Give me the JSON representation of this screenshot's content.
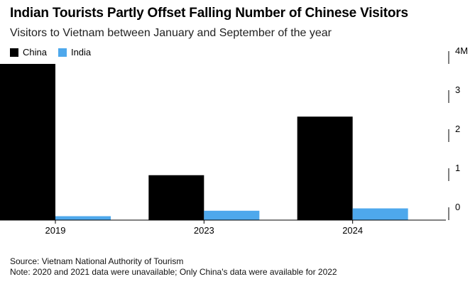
{
  "header": {
    "title": "Indian Tourists Partly Offset Falling Number of Chinese Visitors",
    "subtitle": "Visitors to Vietnam between January and September of the year"
  },
  "legend": {
    "items": [
      {
        "label": "China",
        "color": "#000000"
      },
      {
        "label": "India",
        "color": "#4ea8ec"
      }
    ]
  },
  "footer": {
    "source": "Source: Vietnam National Authority of Tourism",
    "note": "Note: 2020 and 2021 data were unavailable; Only China's data were available for 2022"
  },
  "chart_data": {
    "type": "bar",
    "title": "Indian Tourists Partly Offset Falling Number of Chinese Visitors",
    "subtitle": "Visitors to Vietnam between January and September of the year",
    "categories": [
      "2019",
      "2023",
      "2024"
    ],
    "series": [
      {
        "name": "China",
        "color": "#000000",
        "values": [
          4.0,
          1.15,
          2.65
        ]
      },
      {
        "name": "India",
        "color": "#4ea8ec",
        "values": [
          0.1,
          0.24,
          0.3
        ]
      }
    ],
    "y_ticks": [
      0,
      1,
      2,
      3,
      4
    ],
    "y_tick_labels": [
      "0",
      "1",
      "2",
      "3",
      "4M"
    ],
    "ylim": [
      0,
      4
    ],
    "y_axis_side": "right",
    "legend_position": "top-left",
    "xlabel": "",
    "ylabel": ""
  }
}
